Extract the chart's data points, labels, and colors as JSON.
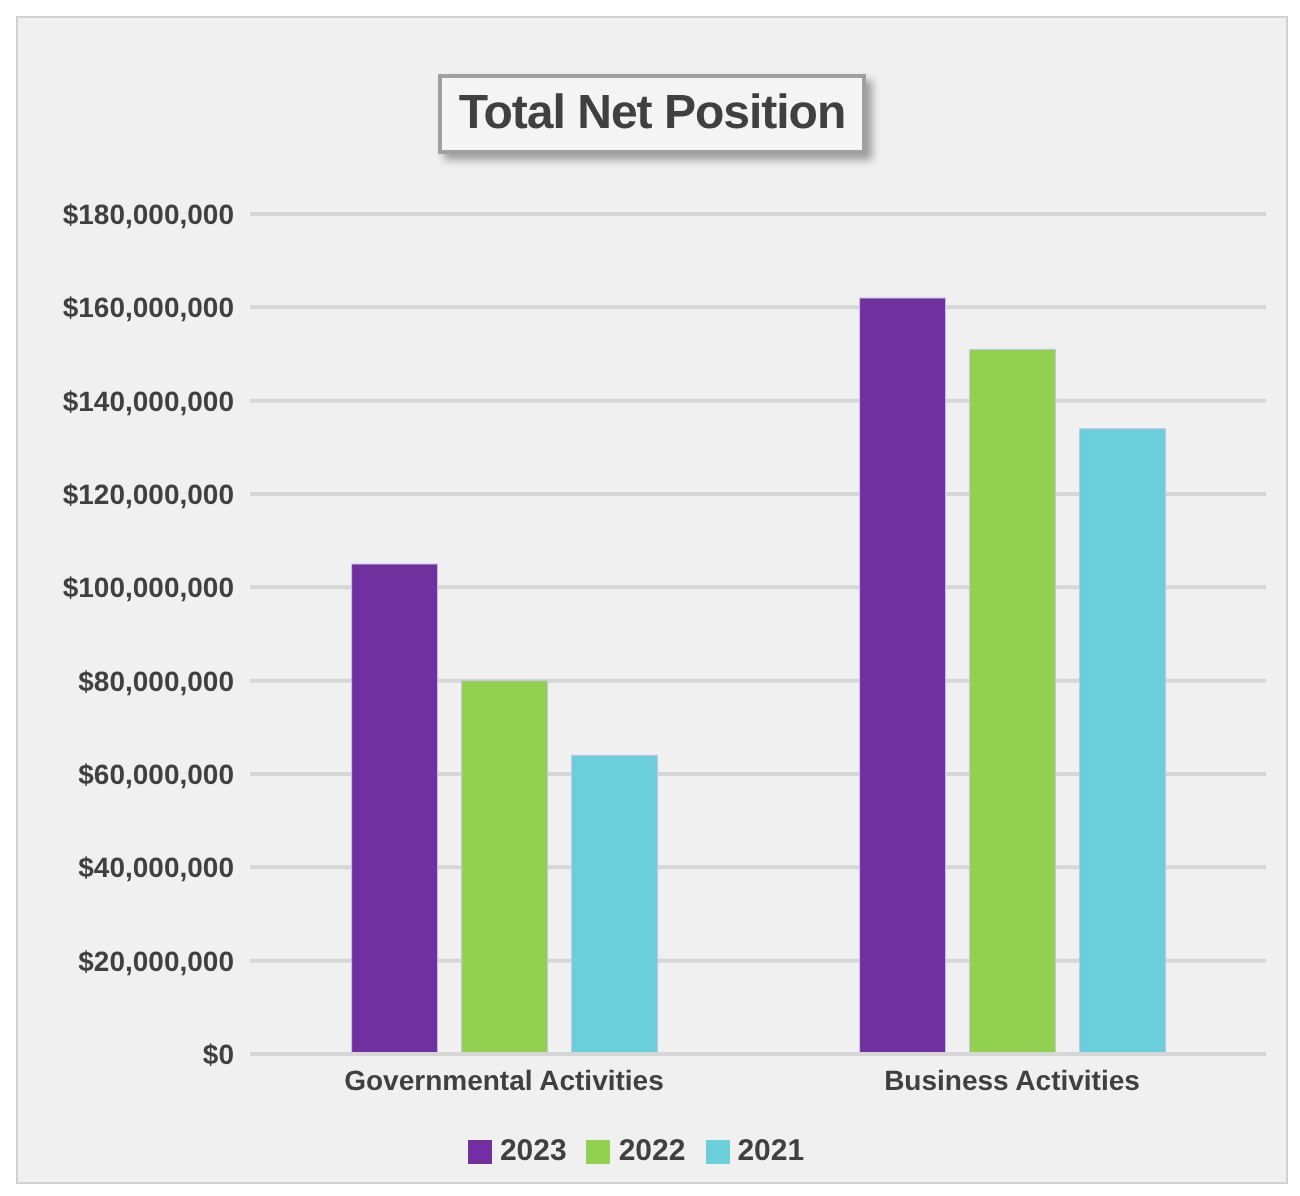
{
  "chart_data": {
    "type": "bar",
    "title": "Total Net Position",
    "categories": [
      "Governmental Activities",
      "Business Activities"
    ],
    "series": [
      {
        "name": "2023",
        "color": "#7030a0",
        "values": [
          105000000,
          162000000
        ]
      },
      {
        "name": "2022",
        "color": "#92d050",
        "values": [
          80000000,
          151000000
        ]
      },
      {
        "name": "2021",
        "color": "#6bcfdb",
        "values": [
          64000000,
          134000000
        ]
      }
    ],
    "ylim": [
      0,
      180000000
    ],
    "yticks": [
      {
        "value": 0,
        "label": "$0"
      },
      {
        "value": 20000000,
        "label": "$20,000,000"
      },
      {
        "value": 40000000,
        "label": "$40,000,000"
      },
      {
        "value": 60000000,
        "label": "$60,000,000"
      },
      {
        "value": 80000000,
        "label": "$80,000,000"
      },
      {
        "value": 100000000,
        "label": "$100,000,000"
      },
      {
        "value": 120000000,
        "label": "$120,000,000"
      },
      {
        "value": 140000000,
        "label": "$140,000,000"
      },
      {
        "value": 160000000,
        "label": "$160,000,000"
      },
      {
        "value": 180000000,
        "label": "$180,000,000"
      }
    ],
    "grid": "y",
    "legend": "bottom"
  }
}
